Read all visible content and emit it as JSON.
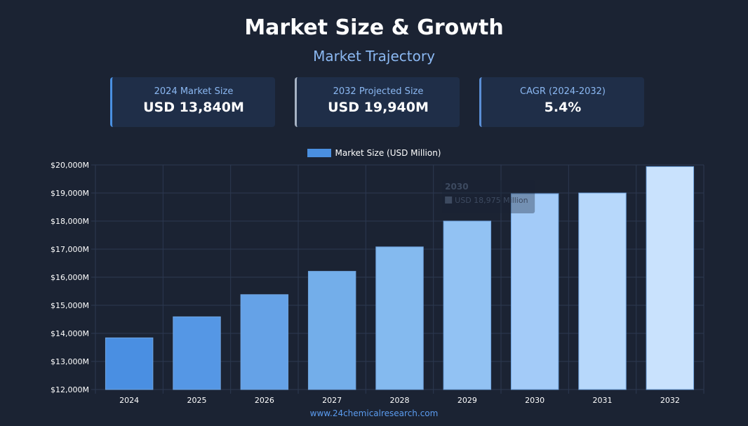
{
  "header": {
    "title": "Market Size & Growth",
    "subtitle": "Market Trajectory"
  },
  "cards": [
    {
      "label": "2024 Market Size",
      "value": "USD 13,840M"
    },
    {
      "label": "2032 Projected Size",
      "value": "USD 19,940M"
    },
    {
      "label": "CAGR (2024-2032)",
      "value": "5.4%"
    }
  ],
  "colors": {
    "background": "#1b2333",
    "accent": "#8bb8f2",
    "bars": [
      "#4a8fe2",
      "#5597e5",
      "#65a2e7",
      "#73aeea",
      "#84baef",
      "#92c2f3",
      "#a3cbf8",
      "#b7d8fb",
      "#c9e2fd"
    ]
  },
  "chart_data": {
    "type": "bar",
    "title": "",
    "legend": [
      "Market Size (USD Million)"
    ],
    "legend_position": "top-center",
    "categories": [
      "2024",
      "2025",
      "2026",
      "2027",
      "2028",
      "2029",
      "2030",
      "2031",
      "2032"
    ],
    "values": [
      13840,
      14590,
      15380,
      16210,
      17080,
      18000,
      18975,
      19000,
      19940
    ],
    "ylim": [
      12000,
      20000
    ],
    "yticks": [
      12000,
      13000,
      14000,
      15000,
      16000,
      17000,
      18000,
      19000,
      20000
    ],
    "ytick_labels": [
      "$12,000M",
      "$13,000M",
      "$14,000M",
      "$15,000M",
      "$16,000M",
      "$17,000M",
      "$18,000M",
      "$19,000M",
      "$20,000M"
    ],
    "xlabel": "",
    "ylabel": "",
    "grid": true,
    "tooltip": {
      "title": "2030",
      "text": "USD 18,975 Million"
    }
  },
  "footer": {
    "text": "www.24chemicalresearch.com"
  }
}
